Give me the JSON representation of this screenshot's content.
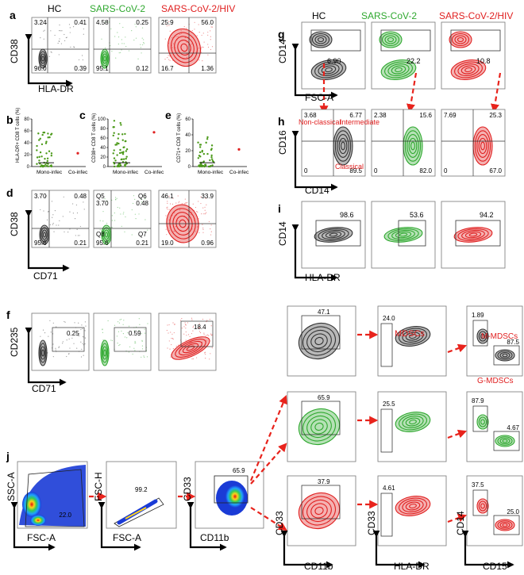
{
  "conditions": {
    "hc": "HC",
    "sars": "SARS-CoV-2",
    "hiv": "SARS-CoV-2/HIV"
  },
  "colors": {
    "hc": "#333333",
    "sars": "#2fa82f",
    "hiv": "#e02020",
    "arrow": "#e8231c",
    "dot_green": "#4c9a1a"
  },
  "panel_a": {
    "letter": "a",
    "ylabel": "CD38",
    "xlabel": "HLA-DR",
    "plots": [
      {
        "tl": "3.24",
        "tr": "0.41",
        "bl": "96.0",
        "br": "0.39"
      },
      {
        "tl": "4.58",
        "tr": "0.25",
        "bl": "95.1",
        "br": "0.12"
      },
      {
        "tl": "25.9",
        "tr": "56.0",
        "bl": "16.7",
        "br": "1.36"
      }
    ]
  },
  "panel_bce": {
    "b": {
      "letter": "b",
      "ylabel": "HLA-DR+ CD8 T cells (%)",
      "yticks": [
        "0",
        "20",
        "40",
        "60",
        "80"
      ]
    },
    "c": {
      "letter": "c",
      "ylabel": "CD38+ CD8 T cells (%)",
      "yticks": [
        "0",
        "20",
        "40",
        "60",
        "80",
        "100"
      ]
    },
    "e": {
      "letter": "e",
      "ylabel": "CD71+ CD8  T cells (%)",
      "yticks": [
        "0",
        "20",
        "40",
        "60"
      ]
    },
    "xticks": [
      "Mono-infec",
      "Co-infec"
    ]
  },
  "panel_d": {
    "letter": "d",
    "ylabel": "CD38",
    "xlabel": "CD71",
    "plots": [
      {
        "tl": "3.70",
        "tr": "0.48",
        "bl": "95.6",
        "br": "0.21"
      },
      {
        "tl": "3.70",
        "tr": "0.48",
        "bl": "95.6",
        "br": "0.21",
        "qtl": "Q5",
        "qtr": "Q6",
        "qbl": "Q8",
        "qbr": "Q7"
      },
      {
        "tl": "46.1",
        "tr": "33.9",
        "bl": "19.0",
        "br": "0.96"
      }
    ]
  },
  "panel_f": {
    "letter": "f",
    "ylabel": "CD235",
    "xlabel": "CD71",
    "values": [
      "0.25",
      "0.59",
      "18.4"
    ]
  },
  "panel_g": {
    "letter": "g",
    "ylabel": "CD14",
    "xlabel": "FSC-A",
    "values": [
      "6.90",
      "22.2",
      "10.8"
    ]
  },
  "panel_h": {
    "letter": "h",
    "ylabel": "CD16",
    "xlabel": "CD14",
    "labels": {
      "nonclassical": "Non-classical",
      "intermediate": "Intermediate",
      "classical": "Classical"
    },
    "plots": [
      {
        "tl": "3.68",
        "tr": "6.77",
        "bl": "0",
        "br": "89.5"
      },
      {
        "tl": "2.38",
        "tr": "15.6",
        "bl": "0",
        "br": "82.0"
      },
      {
        "tl": "7.69",
        "tr": "25.3",
        "bl": "0",
        "br": "67.0"
      }
    ]
  },
  "panel_i": {
    "letter": "i",
    "ylabel": "CD14",
    "xlabel": "HLA-DR",
    "values": [
      "98.6",
      "53.6",
      "94.2"
    ]
  },
  "panel_j": {
    "letter": "j",
    "p1": {
      "ylabel": "SSC-A",
      "xlabel": "FSC-A",
      "value": "22.0"
    },
    "p2": {
      "ylabel": "FSC-H",
      "xlabel": "FSC-A",
      "value": "99.2"
    },
    "p3": {
      "ylabel": "CD33",
      "xlabel": "CD11b",
      "value": "65.9"
    },
    "rows": [
      {
        "cd11b": "47.1",
        "hladr": "24.0",
        "mm": "1.89",
        "gm": "87.5"
      },
      {
        "cd11b": "65.9",
        "hladr": "25.5",
        "mm": "87.9",
        "gm": "4.67"
      },
      {
        "cd11b": "37.9",
        "hladr": "4.61",
        "mm": "37.5",
        "gm": "25.0"
      }
    ],
    "mdscs": "MDSCs",
    "mmdscs": "M-MDSCs",
    "gmdscs": "G-MDSCs",
    "axis_cd33": "CD33",
    "axis_cd14": "CD14",
    "axis_cd11b": "CD11b",
    "axis_hladr": "HLA-DR",
    "axis_cd15": "CD15"
  }
}
